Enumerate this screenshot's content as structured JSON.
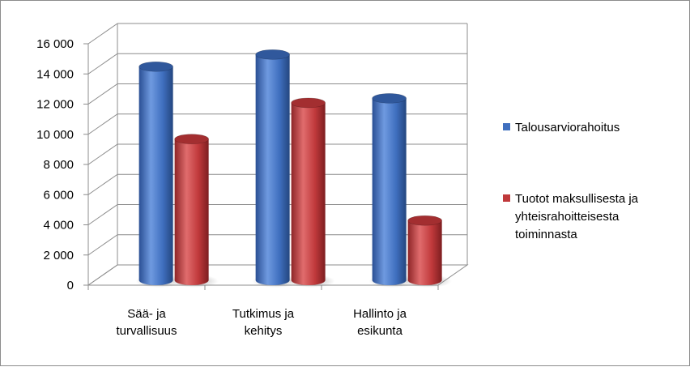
{
  "chart_data": {
    "type": "bar",
    "title": "",
    "xlabel": "",
    "ylabel": "",
    "ylim": [
      0,
      16000
    ],
    "ytick_values": [
      0,
      2000,
      4000,
      6000,
      8000,
      10000,
      12000,
      14000,
      16000
    ],
    "ytick_labels": [
      "0",
      "2 000",
      "4 000",
      "6 000",
      "8 000",
      "10 000",
      "12 000",
      "14 000",
      "16 000"
    ],
    "grid": true,
    "legend_position": "right",
    "categories": [
      [
        "Sää- ja",
        "turvallisuus"
      ],
      [
        "Tutkimus ja",
        "kehitys"
      ],
      [
        "Hallinto ja",
        "esikunta"
      ]
    ],
    "series": [
      {
        "name": "Talousarviorahoitus",
        "name_lines": [
          "Talousarviorahoitus"
        ],
        "color": "#3f6fbf",
        "values": [
          14000,
          14800,
          11900
        ]
      },
      {
        "name": "Tuotot maksullisesta ja yhteisrahoitteisesta toiminnasta",
        "name_lines": [
          "Tuotot maksullisesta ja",
          "yhteisrahoitteisesta",
          "toiminnasta"
        ],
        "color": "#c0393b",
        "values": [
          9200,
          11600,
          3800
        ]
      }
    ]
  }
}
